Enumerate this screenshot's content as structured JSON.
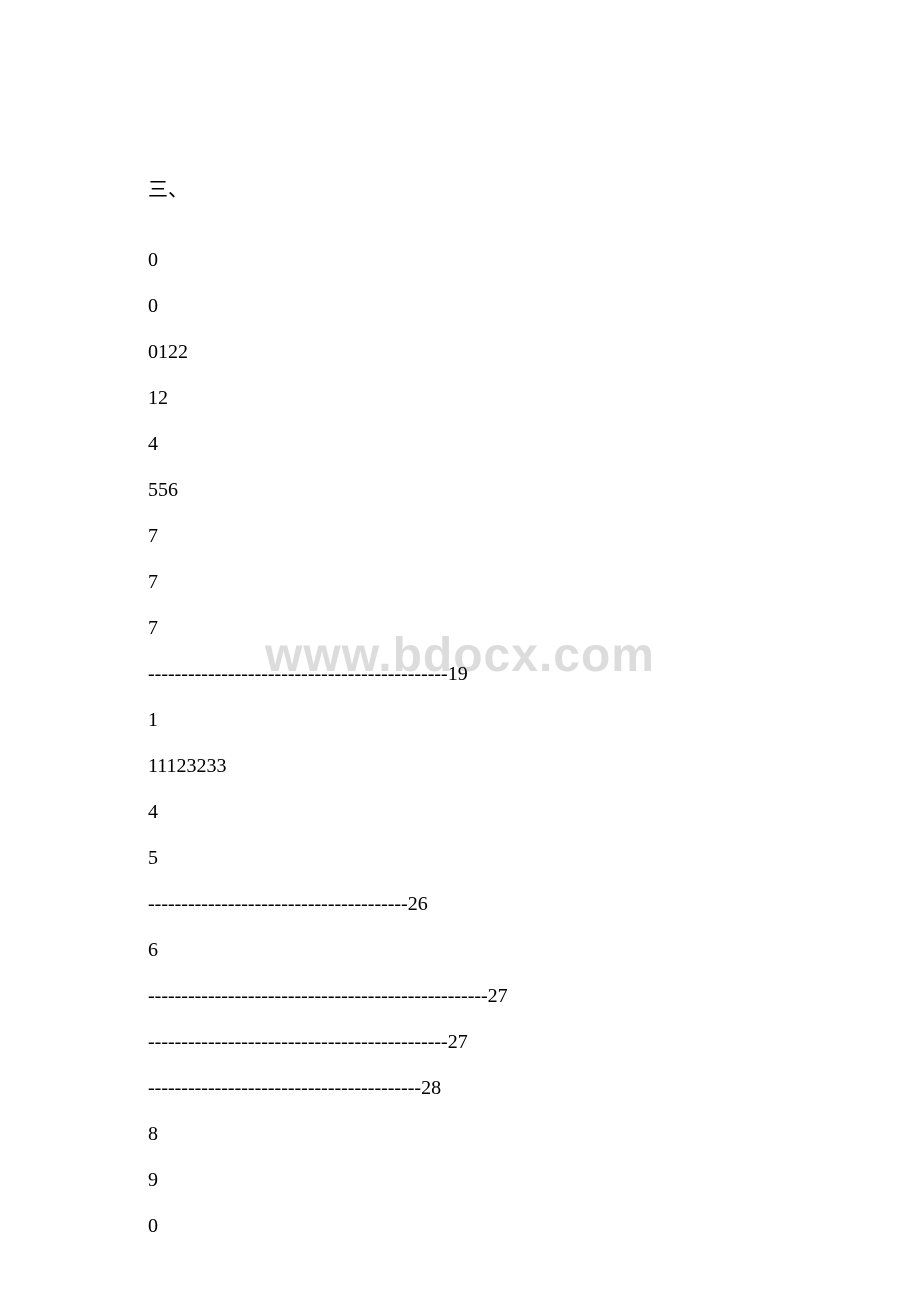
{
  "document": {
    "background_color": "#ffffff",
    "text_color": "#000000",
    "watermark_color": "#dcdcdc",
    "font_size": 20,
    "watermark_font_size": 48,
    "section_header": "三、",
    "watermark_text": "www.bdocx.com",
    "lines": [
      "0",
      "0",
      "0122",
      "12",
      "4",
      "556",
      "7",
      "7",
      "7",
      "---------------------------------------------19",
      "1",
      "11123233",
      "4",
      "5",
      "---------------------------------------26",
      "6",
      "---------------------------------------------------27",
      "---------------------------------------------27",
      "-----------------------------------------28",
      "8",
      "9",
      "0"
    ]
  }
}
